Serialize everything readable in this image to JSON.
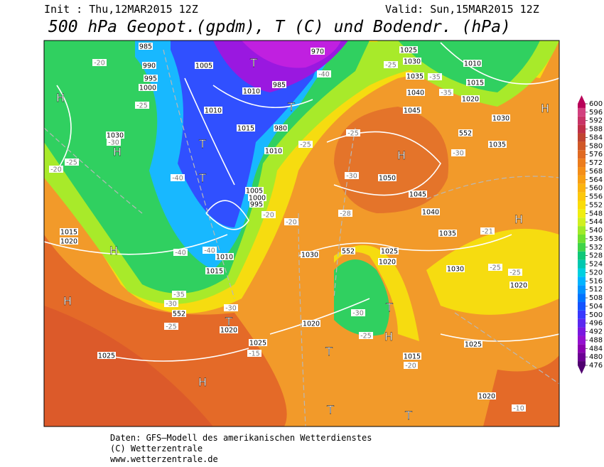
{
  "header": {
    "init": "Init : Thu,12MAR2015  12Z",
    "valid": "Valid: Sun,15MAR2015  12Z",
    "title": "500 hPa Geopot.(gpdm), T (C) und Bodendr. (hPa)"
  },
  "map": {
    "labels": [
      "H",
      "H",
      "H",
      "H",
      "H",
      "H",
      "H",
      "H",
      "H",
      "T",
      "T",
      "T",
      "T",
      "T",
      "T",
      "T",
      "T",
      "T",
      "1005",
      "1010",
      "1015",
      "1010",
      "1005",
      "1000",
      "995",
      "1010",
      "1015",
      "1020",
      "1025",
      "1025",
      "1015",
      "1020",
      "1030",
      "1030",
      "1025",
      "1020",
      "1050",
      "1045",
      "1040",
      "1035",
      "1030",
      "1025",
      "1020",
      "1015",
      "1020",
      "1020",
      "1035",
      "1030",
      "1020",
      "1015",
      "1010",
      "1040",
      "1045",
      "1035",
      "1030",
      "1025",
      "985",
      "990",
      "995",
      "1000",
      "985",
      "970",
      "980",
      "1010",
      "-20",
      "-25",
      "-30",
      "-25",
      "-20",
      "-40",
      "-40",
      "-40",
      "-35",
      "-30",
      "-25",
      "-30",
      "-15",
      "-20",
      "-20",
      "-25",
      "-25",
      "-30",
      "-28",
      "-30",
      "-25",
      "-20",
      "-10",
      "-25",
      "-25",
      "-21",
      "-30",
      "-35",
      "-35",
      "-25",
      "-40",
      "552",
      "552",
      "552"
    ]
  },
  "colorbar": {
    "levels": [
      600,
      596,
      592,
      588,
      584,
      580,
      576,
      572,
      568,
      564,
      560,
      556,
      552,
      548,
      544,
      540,
      536,
      532,
      528,
      524,
      520,
      516,
      512,
      508,
      504,
      500,
      496,
      492,
      488,
      484,
      480,
      476
    ],
    "colors": [
      "#b80058",
      "#d2407e",
      "#c83466",
      "#c03048",
      "#c04430",
      "#d05828",
      "#e06a22",
      "#ec7c1c",
      "#f48e18",
      "#f8a014",
      "#fbb410",
      "#fdc80c",
      "#fadc08",
      "#f0ee10",
      "#d0f020",
      "#a0ea28",
      "#70e030",
      "#40d448",
      "#10c878",
      "#00c8b0",
      "#00d0e0",
      "#00b4ff",
      "#0094ff",
      "#0074ff",
      "#1454ff",
      "#3838ff",
      "#5a28f0",
      "#7a18e0",
      "#9410d0",
      "#8a00b0",
      "#6c0094",
      "#500070"
    ]
  },
  "footer": {
    "line1": "Daten: GFS–Modell des amerikanischen Wetterdienstes",
    "line2": "(C) Wetterzentrale",
    "line3": "www.wetterzentrale.de"
  }
}
